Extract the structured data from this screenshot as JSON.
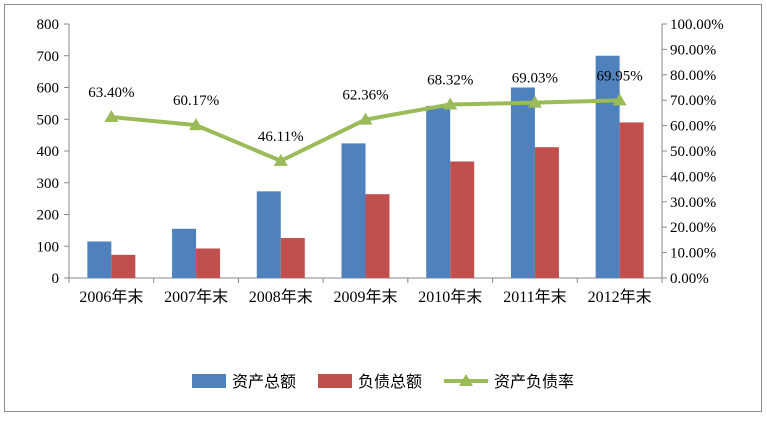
{
  "chart_data": {
    "type": "bar",
    "categories": [
      "2006年末",
      "2007年末",
      "2008年末",
      "2009年末",
      "2010年末",
      "2011年末",
      "2012年末"
    ],
    "series": [
      {
        "name": "资产总额",
        "type": "bar",
        "axis": "left",
        "color": "#4F81BD",
        "values": [
          115,
          155,
          273,
          424,
          542,
          600,
          700
        ]
      },
      {
        "name": "负债总额",
        "type": "bar",
        "axis": "left",
        "color": "#C0504D",
        "values": [
          73,
          93,
          126,
          264,
          367,
          412,
          490
        ]
      },
      {
        "name": "资产负债率",
        "type": "line",
        "axis": "right",
        "color": "#9BBB59",
        "marker": "triangle",
        "values": [
          63.4,
          60.17,
          46.11,
          62.36,
          68.32,
          69.03,
          69.95
        ],
        "labels": [
          "63.40%",
          "60.17%",
          "46.11%",
          "62.36%",
          "68.32%",
          "69.03%",
          "69.95%"
        ]
      }
    ],
    "y_left": {
      "ylim": [
        0,
        800
      ],
      "ticks": [
        "0",
        "100",
        "200",
        "300",
        "400",
        "500",
        "600",
        "700",
        "800"
      ]
    },
    "y_right": {
      "ylim": [
        0,
        100
      ],
      "ticks": [
        "0.00%",
        "10.00%",
        "20.00%",
        "30.00%",
        "40.00%",
        "50.00%",
        "60.00%",
        "70.00%",
        "80.00%",
        "90.00%",
        "100.00%"
      ]
    },
    "grid": false,
    "legend": "bottom",
    "title": "",
    "xlabel": "",
    "ylabel": ""
  }
}
